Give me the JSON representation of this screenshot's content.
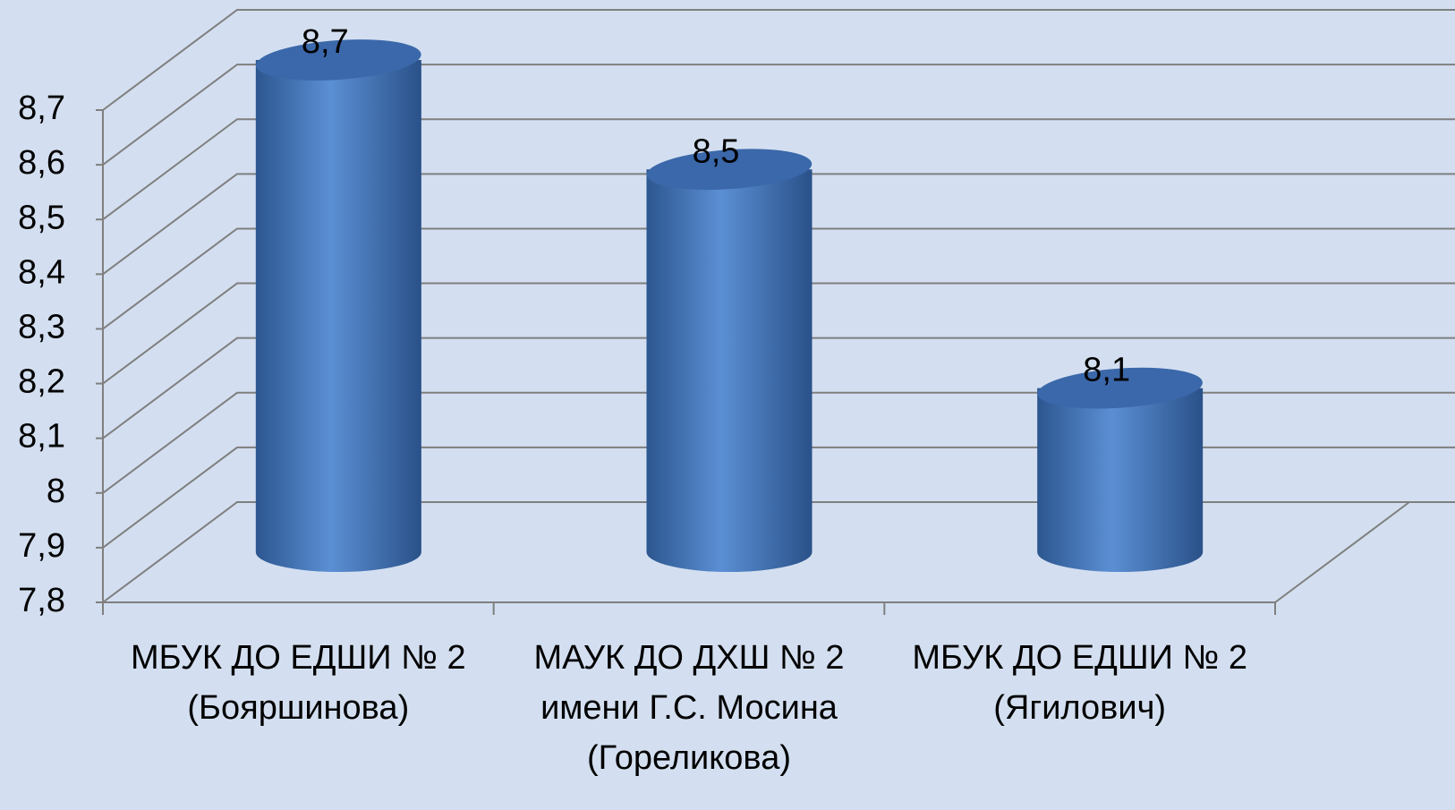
{
  "chart_data": {
    "type": "bar3d",
    "categories": [
      "МБУК ДО ЕДШИ № 2 (Бояршинова)",
      "МАУК ДО ДХШ № 2 имени Г.С. Мосина (Гореликова)",
      "МБУК ДО ЕДШИ № 2 (Ягилович)"
    ],
    "values": [
      8.7,
      8.5,
      8.1
    ],
    "value_labels": [
      "8,7",
      "8,5",
      "8,1"
    ],
    "color": "#4a7cc0",
    "ylim": [
      7.8,
      8.7
    ],
    "yticks": [
      {
        "value": 7.8,
        "label": "7,8"
      },
      {
        "value": 7.9,
        "label": "7,9"
      },
      8,
      {
        "value": 8.1,
        "label": "8,1"
      },
      {
        "value": 8.2,
        "label": "8,2"
      },
      {
        "value": 8.3,
        "label": "8,3"
      },
      {
        "value": 8.4,
        "label": "8,4"
      },
      {
        "value": 8.5,
        "label": "8,5"
      },
      {
        "value": 8.6,
        "label": "8,6"
      },
      {
        "value": 8.7,
        "label": "8,7"
      }
    ],
    "grid": true
  }
}
